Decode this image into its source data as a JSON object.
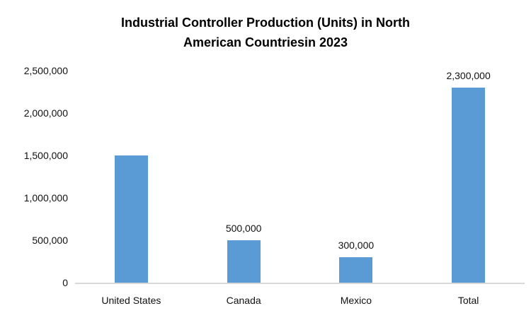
{
  "chart_data": {
    "type": "bar",
    "title": "Industrial Controller Production (Units) in North American Countriesin 2023",
    "title_lines": [
      "Industrial Controller Production (Units) in North",
      "American Countriesin 2023"
    ],
    "categories": [
      "United States",
      "Canada",
      "Mexico",
      "Total"
    ],
    "values": [
      1500000,
      500000,
      300000,
      2300000
    ],
    "data_labels": [
      null,
      "500,000",
      "300,000",
      "2,300,000"
    ],
    "series": [
      {
        "name": "Industrial Controller Production (Units)",
        "values": [
          1500000,
          500000,
          300000,
          2300000
        ]
      }
    ],
    "xlabel": "",
    "ylabel": "",
    "ylim": [
      0,
      2500000
    ],
    "y_axis": {
      "min": 0,
      "max": 2500000,
      "tick_interval": 500000,
      "tick_labels": [
        "0",
        "500,000",
        "1,000,000",
        "1,500,000",
        "2,000,000",
        "2,500,000"
      ]
    },
    "legend": "none",
    "grid": false,
    "colors": {
      "bar": "#5B9BD5",
      "axis_line": "#D9D9D9",
      "text": "#000000"
    }
  }
}
